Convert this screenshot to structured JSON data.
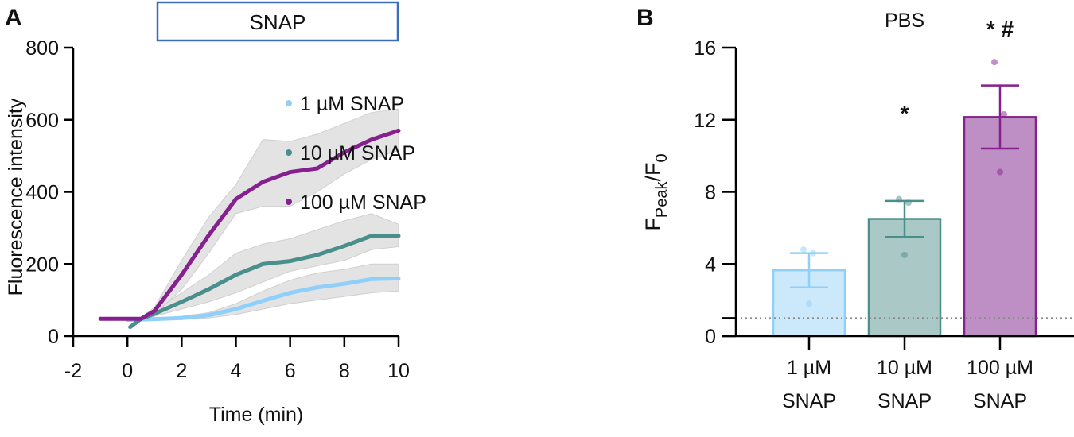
{
  "chart_data": [
    {
      "panel_label": "A",
      "type": "line",
      "stimulus_box": "SNAP",
      "xlabel": "Time (min)",
      "ylabel": "Fluorescence intensity",
      "xlim": [
        -2,
        10
      ],
      "ylim": [
        0,
        800
      ],
      "xticks": [
        "-2",
        "0",
        "2",
        "4",
        "6",
        "8",
        "10"
      ],
      "yticks": [
        "0",
        "200",
        "400",
        "600",
        "800"
      ],
      "legend_position": "right",
      "series": [
        {
          "name": "1 µM SNAP",
          "color": "#8fd0fa",
          "x": [
            0,
            1,
            2,
            3,
            4,
            5,
            6,
            7,
            8,
            9,
            10
          ],
          "mean": [
            45,
            47,
            50,
            58,
            75,
            98,
            120,
            135,
            145,
            158,
            160
          ],
          "upper": [
            45,
            50,
            55,
            65,
            90,
            125,
            155,
            175,
            185,
            200,
            200
          ],
          "lower": [
            45,
            44,
            46,
            50,
            60,
            75,
            90,
            100,
            110,
            120,
            125
          ]
        },
        {
          "name": "10 µM SNAP",
          "color": "#4a8f8c",
          "x": [
            0.1,
            0.5,
            1,
            2,
            3,
            4,
            5,
            6,
            7,
            8,
            9,
            10
          ],
          "mean": [
            25,
            48,
            62,
            95,
            130,
            170,
            200,
            208,
            225,
            250,
            278,
            278
          ],
          "upper": [
            25,
            52,
            70,
            120,
            170,
            230,
            255,
            270,
            295,
            320,
            340,
            310
          ],
          "lower": [
            25,
            44,
            55,
            75,
            95,
            120,
            150,
            180,
            195,
            210,
            240,
            248
          ]
        },
        {
          "name": "100 µM SNAP",
          "color": "#86208f",
          "x": [
            -1,
            0,
            0.5,
            1,
            2,
            3,
            4,
            5,
            6,
            7,
            8,
            9,
            10
          ],
          "mean": [
            48,
            48,
            48,
            70,
            170,
            280,
            380,
            428,
            455,
            465,
            510,
            545,
            570
          ],
          "upper": [
            50,
            50,
            52,
            80,
            210,
            330,
            420,
            545,
            540,
            560,
            590,
            620,
            630
          ],
          "lower": [
            46,
            46,
            44,
            60,
            130,
            230,
            340,
            360,
            360,
            400,
            450,
            490,
            515
          ]
        }
      ]
    },
    {
      "panel_label": "B",
      "type": "bar",
      "title": "PBS",
      "ylabel_main": "F",
      "ylabel_sub1": "Peak",
      "ylabel_mid": "/F",
      "ylabel_sub2": "0",
      "ylim": [
        0,
        16
      ],
      "yticks": [
        "0",
        "4",
        "8",
        "12",
        "16"
      ],
      "reference_line": 1,
      "categories": [
        {
          "line1": "1 µM",
          "line2": "SNAP"
        },
        {
          "line1": "10 µM",
          "line2": "SNAP"
        },
        {
          "line1": "100 µM",
          "line2": "SNAP"
        }
      ],
      "values": [
        3.65,
        6.5,
        12.15
      ],
      "errors": [
        0.95,
        1.0,
        1.75
      ],
      "points": [
        [
          4.8,
          4.6,
          1.8
        ],
        [
          7.6,
          7.4,
          4.5
        ],
        [
          15.2,
          12.3,
          9.1
        ]
      ],
      "annotations": [
        "",
        "*",
        "* #"
      ],
      "colors": [
        {
          "stroke": "#8fd0fa",
          "fill": "#cce8fb"
        },
        {
          "stroke": "#4a8f8c",
          "fill": "#a9c8c6"
        },
        {
          "stroke": "#86208f",
          "fill": "#be8fc4"
        }
      ]
    }
  ]
}
